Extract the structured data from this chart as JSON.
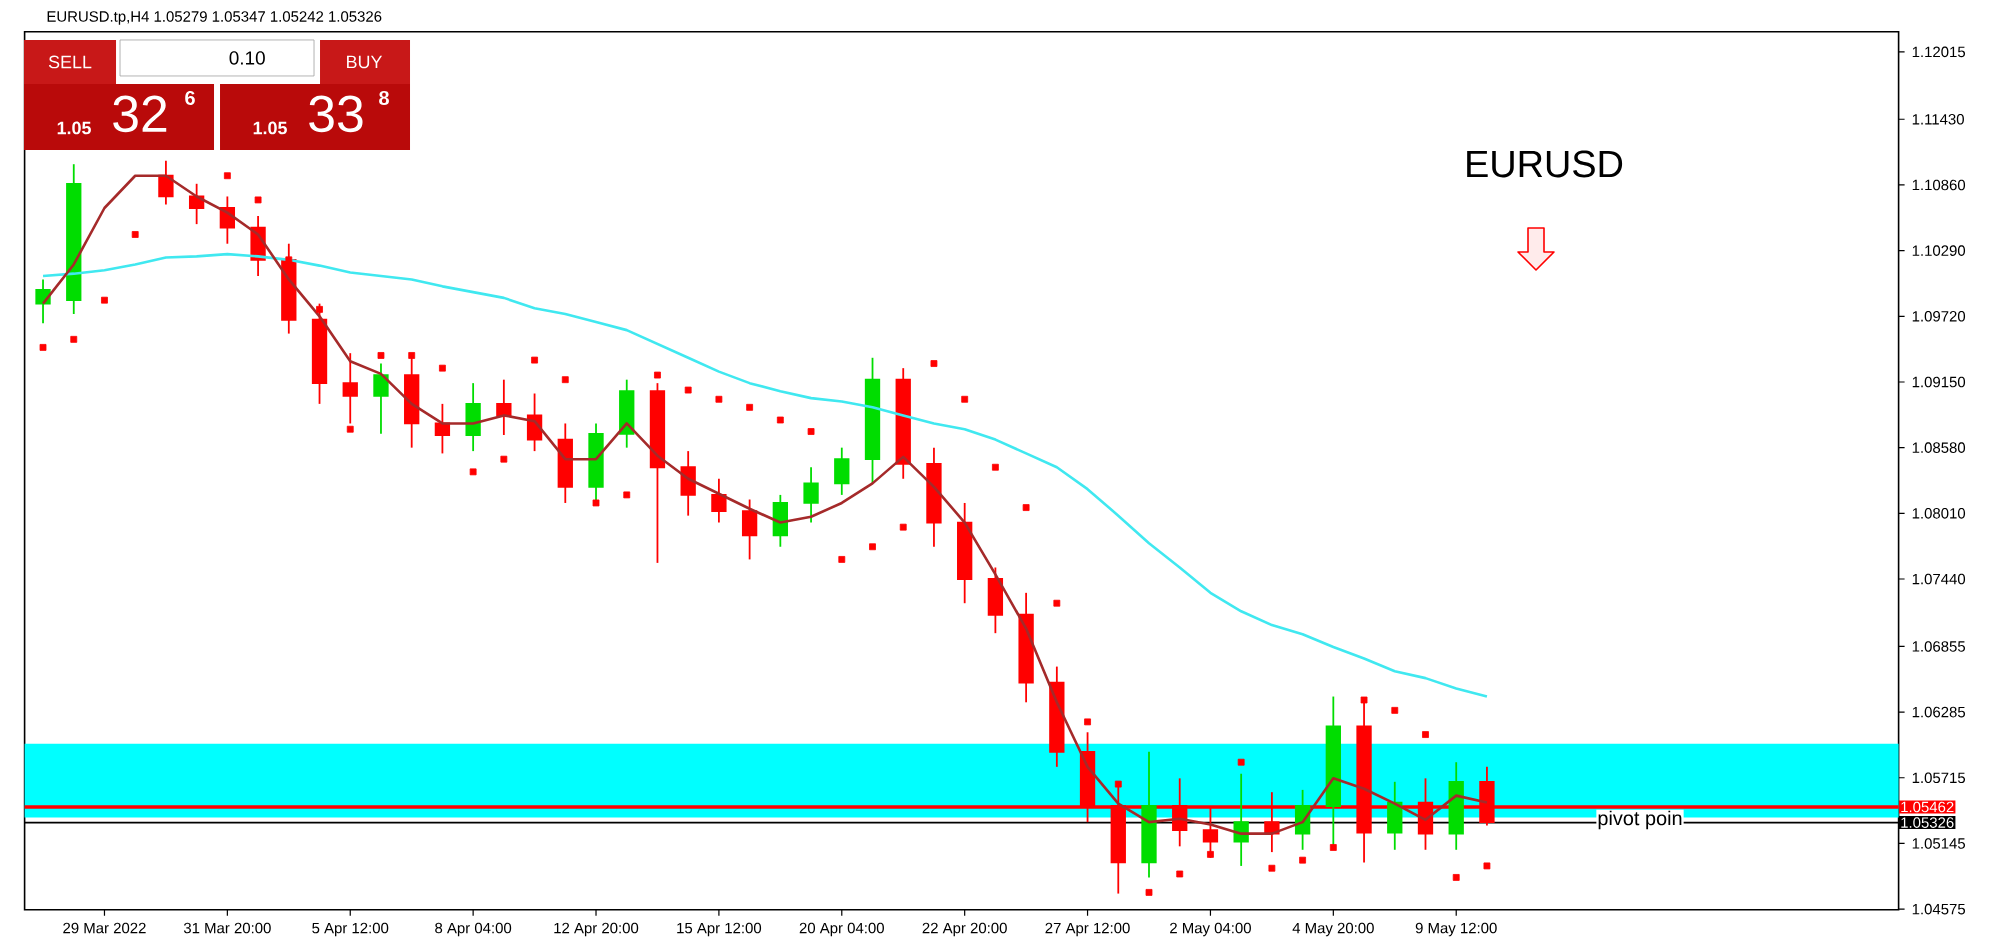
{
  "chart_data": {
    "type": "candlestick",
    "title": "EURUSD",
    "categories": [
      null,
      null,
      "29 Mar 2022",
      null,
      null,
      null,
      "31 Mar 20:00",
      null,
      null,
      null,
      "5 Apr 12:00",
      null,
      null,
      null,
      "8 Apr 04:00",
      null,
      null,
      null,
      "12 Apr 20:00",
      null,
      null,
      null,
      "15 Apr 12:00",
      null,
      null,
      null,
      "20 Apr 04:00",
      null,
      null,
      null,
      "22 Apr 20:00",
      null,
      null,
      null,
      "27 Apr 12:00",
      null,
      null,
      null,
      "2 May 04:00",
      null,
      null,
      null,
      "4 May 20:00",
      null,
      null,
      null,
      "9 May 12:00",
      null,
      null,
      null,
      null,
      null,
      null,
      null,
      null,
      null,
      null,
      null,
      null,
      null,
      null
    ],
    "ohlc": [
      [
        1.0983,
        1.1004,
        1.0966,
        1.0995
      ],
      [
        1.0986,
        1.1104,
        1.0974,
        1.1087
      ],
      null,
      null,
      [
        1.1094,
        1.1107,
        1.1069,
        1.1076
      ],
      [
        1.1076,
        1.1087,
        1.1052,
        1.1066
      ],
      [
        1.1066,
        1.1076,
        1.1035,
        1.1049
      ],
      [
        1.1049,
        1.1059,
        1.1007,
        1.1021
      ],
      [
        1.1021,
        1.1035,
        1.0957,
        1.0969
      ],
      [
        1.0969,
        1.0983,
        1.0896,
        1.0914
      ],
      [
        1.0914,
        1.094,
        1.0879,
        1.0903
      ],
      [
        1.0903,
        1.0931,
        1.087,
        1.0921
      ],
      [
        1.0921,
        1.094,
        1.0858,
        1.0879
      ],
      [
        1.0879,
        1.0896,
        1.0853,
        1.0869
      ],
      [
        1.0869,
        1.0914,
        1.0855,
        1.0896
      ],
      [
        1.0896,
        1.0917,
        1.0869,
        1.0886
      ],
      [
        1.0886,
        1.0905,
        1.0855,
        1.0865
      ],
      [
        1.0865,
        1.0879,
        1.081,
        1.0824
      ],
      [
        1.0824,
        1.0879,
        1.081,
        1.087
      ],
      [
        1.087,
        1.0917,
        1.0858,
        1.0907
      ],
      [
        1.0907,
        1.0914,
        1.0758,
        1.0841
      ],
      [
        1.0841,
        1.0855,
        1.0799,
        1.0817
      ],
      [
        1.0817,
        1.0831,
        1.0793,
        1.0803
      ],
      [
        1.0803,
        1.0813,
        1.0761,
        1.0782
      ],
      [
        1.0782,
        1.0817,
        1.0772,
        1.081
      ],
      [
        1.081,
        1.0841,
        1.0793,
        1.0827
      ],
      [
        1.0827,
        1.0858,
        1.0817,
        1.0848
      ],
      [
        1.0848,
        1.0936,
        1.0827,
        1.0917
      ],
      [
        1.0917,
        1.0927,
        1.0831,
        1.0844
      ],
      [
        1.0844,
        1.0858,
        1.0772,
        1.0793
      ],
      [
        1.0793,
        1.081,
        1.0723,
        1.0744
      ],
      [
        1.0744,
        1.0754,
        1.0697,
        1.0713
      ],
      [
        1.0713,
        1.0732,
        1.0637,
        1.0654
      ],
      [
        1.0654,
        1.0668,
        1.0581,
        1.0594
      ],
      [
        1.0594,
        1.0611,
        1.0533,
        1.0547
      ],
      [
        1.0547,
        1.0568,
        1.0471,
        1.0498
      ],
      [
        1.0498,
        1.0594,
        1.0485,
        1.0547
      ],
      [
        1.0547,
        1.0571,
        1.0512,
        1.0526
      ],
      [
        1.0526,
        1.0547,
        1.0502,
        1.0516
      ],
      [
        1.0516,
        1.0575,
        1.0495,
        1.0533
      ],
      [
        1.0533,
        1.0559,
        1.0507,
        1.0523
      ],
      [
        1.0523,
        1.0561,
        1.0509,
        1.0547
      ],
      [
        1.0547,
        1.0642,
        1.0511,
        1.0616
      ],
      [
        1.0616,
        1.0637,
        1.0498,
        1.0524
      ],
      [
        1.0524,
        1.0568,
        1.0509,
        1.055
      ],
      [
        1.055,
        1.0571,
        1.0509,
        1.0523
      ],
      [
        1.0523,
        1.0585,
        1.0509,
        1.0568
      ],
      [
        1.0568,
        1.0581,
        1.053,
        1.0533
      ],
      null,
      null,
      null,
      null,
      null,
      null,
      null,
      null,
      null,
      null,
      null,
      null,
      null
    ],
    "colors": [
      "#00dd00",
      "#00dd00",
      null,
      null,
      "#ff0000",
      "#ff0000",
      "#ff0000",
      "#ff0000",
      "#ff0000",
      "#ff0000",
      "#ff0000",
      "#00dd00",
      "#ff0000",
      "#ff0000",
      "#00dd00",
      "#ff0000",
      "#ff0000",
      "#ff0000",
      "#00dd00",
      "#00dd00",
      "#ff0000",
      "#ff0000",
      "#ff0000",
      "#ff0000",
      "#00dd00",
      "#00dd00",
      "#00dd00",
      "#00dd00",
      "#ff0000",
      "#ff0000",
      "#ff0000",
      "#ff0000",
      "#ff0000",
      "#ff0000",
      "#ff0000",
      "#ff0000",
      "#00dd00",
      "#ff0000",
      "#ff0000",
      "#00dd00",
      "#ff0000",
      "#00dd00",
      "#00dd00",
      "#ff0000",
      "#00dd00",
      "#ff0000",
      "#00dd00",
      "#ff0000",
      null,
      null,
      null,
      null,
      null,
      null,
      null,
      null,
      null,
      null,
      null,
      null,
      null
    ],
    "series": [
      {
        "type": "line",
        "color": "#40e8f0",
        "values": [
          1.1007,
          1.1009,
          1.1012,
          1.1017,
          1.1023,
          1.1024,
          1.1026,
          1.1024,
          1.1021,
          1.1016,
          1.101,
          1.1007,
          1.1004,
          1.0998,
          1.0993,
          1.0988,
          1.0979,
          1.0974,
          1.0967,
          1.096,
          1.0948,
          1.0936,
          1.0924,
          1.0914,
          1.0907,
          1.0901,
          1.0898,
          1.0893,
          1.0886,
          1.0879,
          1.0874,
          1.0865,
          1.0853,
          1.0841,
          1.0822,
          1.0799,
          1.0775,
          1.0754,
          1.0732,
          1.0716,
          1.0704,
          1.0696,
          1.0685,
          1.0675,
          1.0664,
          1.0658,
          1.0649,
          1.0642,
          null,
          null,
          null,
          null,
          null,
          null,
          null,
          null,
          null,
          null,
          null,
          null,
          null
        ]
      },
      {
        "type": "line",
        "color": "#a52a2a",
        "values": [
          1.0983,
          1.1017,
          1.1066,
          1.1094,
          1.1094,
          1.1076,
          1.1062,
          1.1043,
          1.1004,
          1.0972,
          1.0933,
          1.0922,
          1.0896,
          1.0879,
          1.0879,
          1.0886,
          1.0881,
          1.0848,
          1.0848,
          1.0879,
          1.0851,
          1.0831,
          1.0818,
          1.0805,
          1.0793,
          1.0798,
          1.081,
          1.0827,
          1.085,
          1.0824,
          1.0793,
          1.0748,
          1.0701,
          1.0637,
          1.0581,
          1.0549,
          1.0533,
          1.0536,
          1.0531,
          1.0523,
          1.0523,
          1.0533,
          1.0571,
          1.0562,
          1.0549,
          1.0535,
          1.0556,
          1.055,
          null,
          null,
          null,
          null,
          null,
          null,
          null,
          null,
          null,
          null,
          null,
          null,
          null
        ]
      },
      {
        "type": "scatter",
        "color": "#ff0000",
        "marker": "square",
        "values": [
          1.0945,
          1.0952,
          1.0986,
          1.1043,
          null,
          null,
          1.1094,
          1.1073,
          1.1021,
          1.0978,
          1.0874,
          1.0938,
          1.0938,
          1.0927,
          1.0837,
          1.0848,
          1.0934,
          1.0917,
          1.081,
          1.0817,
          1.0921,
          1.0908,
          1.09,
          1.0893,
          1.0882,
          1.0872,
          1.0761,
          1.0772,
          1.0789,
          1.0931,
          1.09,
          1.0841,
          1.0806,
          1.0723,
          1.062,
          1.0566,
          1.0472,
          1.0488,
          1.0505,
          1.0585,
          1.0493,
          1.05,
          1.0511,
          1.0639,
          1.063,
          1.0609,
          1.0485,
          1.0495,
          null,
          null,
          null,
          null,
          null,
          null,
          null,
          null,
          null,
          null,
          null,
          null,
          null
        ]
      }
    ],
    "ylim": [
      1.0457,
      1.1219
    ],
    "yticks": [
      1.12015,
      {
        "value": 1.1143,
        "label": "1.11430"
      },
      {
        "value": 1.1086,
        "label": "1.10860"
      },
      {
        "value": 1.1029,
        "label": "1.10290"
      },
      {
        "value": 1.0972,
        "label": "1.09720"
      },
      {
        "value": 1.0915,
        "label": "1.09150"
      },
      {
        "value": 1.0858,
        "label": "1.08580"
      },
      {
        "value": 1.0801,
        "label": "1.08010"
      },
      {
        "value": 1.0744,
        "label": "1.07440"
      },
      1.06855,
      1.06285,
      1.05715,
      1.05145,
      1.04575
    ],
    "bands": [
      {
        "axis": "y",
        "from": 1.0537,
        "to": 1.0601,
        "color": "#00ffff"
      }
    ],
    "ref_lines": [
      {
        "axis": "y",
        "value": 1.05462,
        "label": "1.05462",
        "color": "#ff0000"
      },
      {
        "axis": "y",
        "value": 1.05326,
        "label": "1.05326",
        "color": "#000000"
      }
    ],
    "annotations": [
      "EURUSD.tp,H4 1.05279 1.05347 1.05242 1.05326",
      "SELL",
      "0.10",
      "BUY",
      "1.05",
      "32",
      "6",
      "1.05",
      "33",
      "8",
      "pivot poin"
    ]
  }
}
